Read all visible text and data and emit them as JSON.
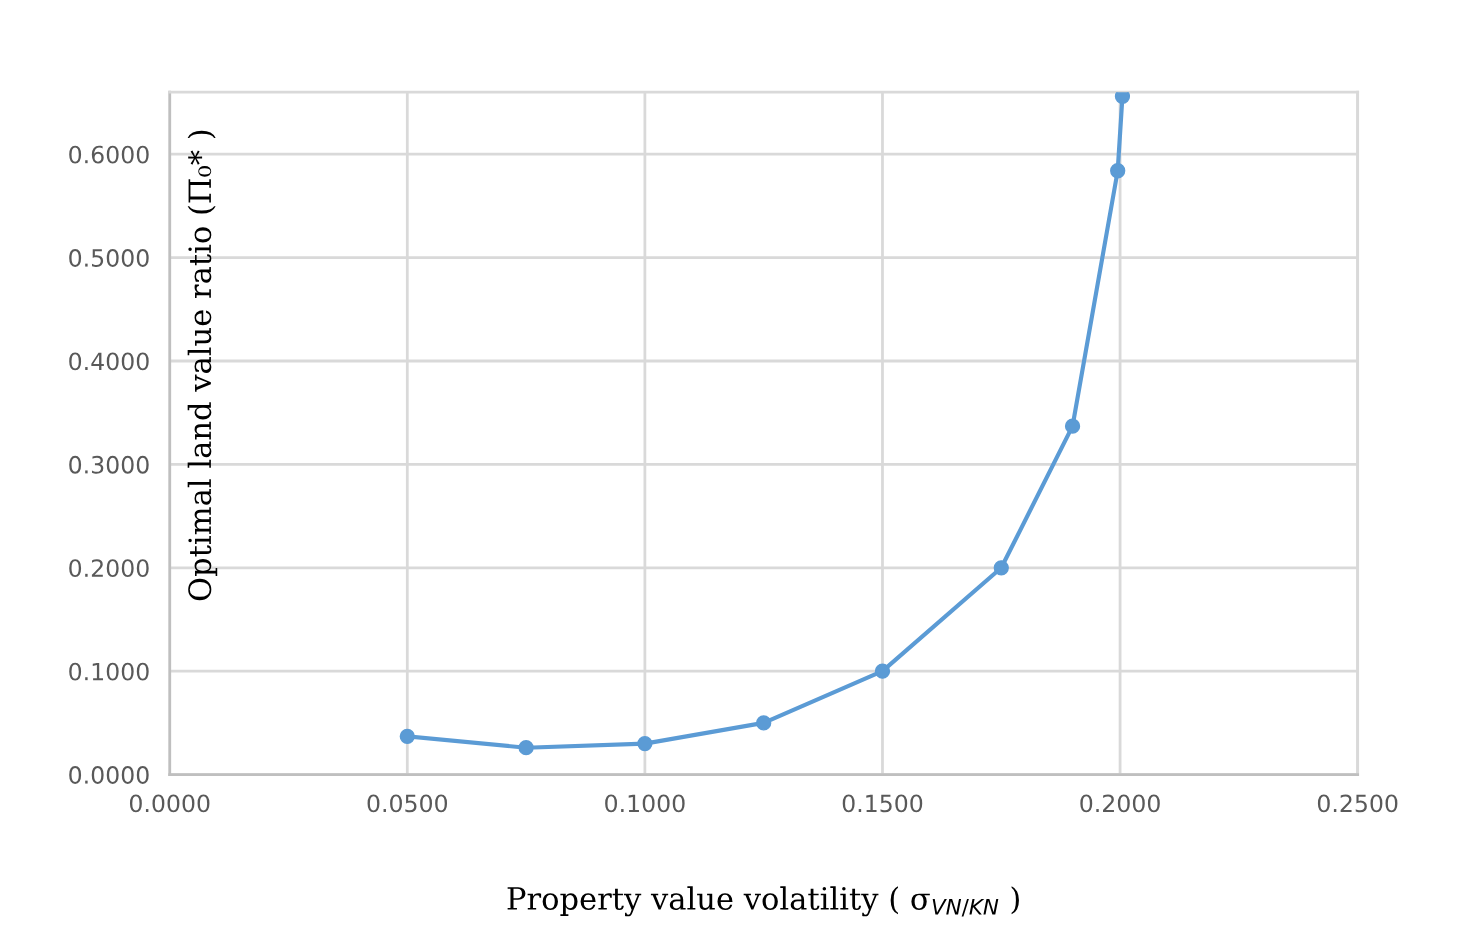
{
  "chart_data": {
    "type": "line",
    "xlabel": "Property value volatility ( σ$_{VN/KN}$ )",
    "ylabel": "Optimal land value ratio (Π₀* )",
    "x": [
      0.05,
      0.075,
      0.1,
      0.125,
      0.15,
      0.175,
      0.19,
      0.1995,
      0.2005
    ],
    "series": [
      {
        "color": "#5b9bd5",
        "values": [
          0.037,
          0.026,
          0.03,
          0.05,
          0.1,
          0.2,
          0.337,
          0.584,
          0.656
        ]
      }
    ],
    "xlim": [
      0,
      0.25
    ],
    "xticks": [
      {
        "value": 0,
        "label": "0.0000"
      },
      {
        "value": 0.05,
        "label": "0.0500"
      },
      {
        "value": 0.1,
        "label": "0.1000"
      },
      {
        "value": 0.15,
        "label": "0.1500"
      },
      {
        "value": 0.2,
        "label": "0.2000"
      },
      {
        "value": 0.25,
        "label": "0.2500"
      }
    ],
    "ylim": [
      0,
      0.66
    ],
    "yticks": [
      {
        "value": 0,
        "label": "0.0000"
      },
      {
        "value": 0.1,
        "label": "0.1000"
      },
      {
        "value": 0.2,
        "label": "0.2000"
      },
      {
        "value": 0.3,
        "label": "0.3000"
      },
      {
        "value": 0.4,
        "label": "0.4000"
      },
      {
        "value": 0.5,
        "label": "0.5000"
      },
      {
        "value": 0.6,
        "label": "0.6000"
      }
    ],
    "grid": true,
    "marker": "circle",
    "line_style": "solid"
  }
}
